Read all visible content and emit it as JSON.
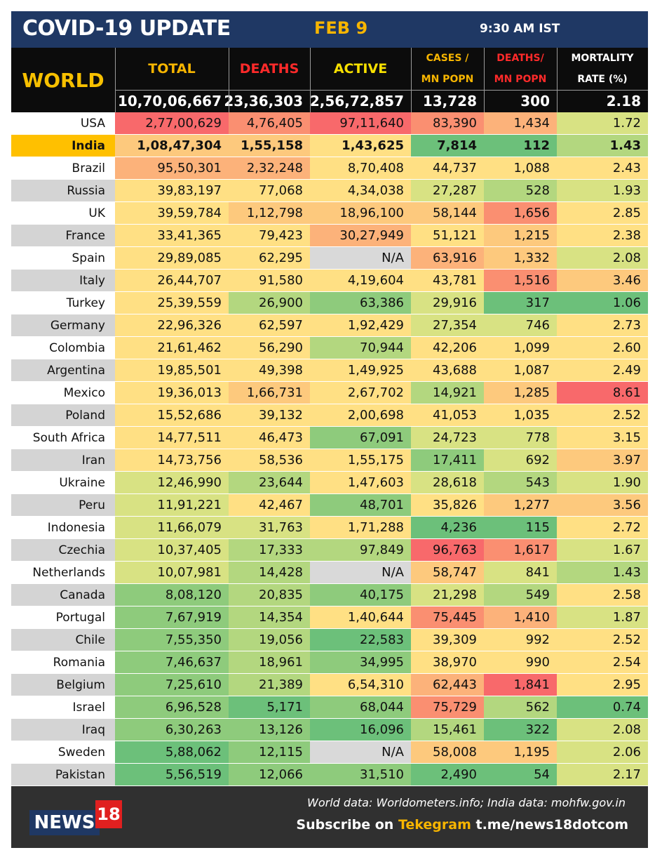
{
  "header": {
    "title": "COVID-19 UPDATE",
    "date": "FEB 9",
    "time": "9:30 AM IST"
  },
  "world": {
    "label": "WORLD",
    "columns": {
      "total": "TOTAL",
      "deaths": "DEATHS",
      "active": "ACTIVE",
      "cases_mn_1": "CASES /",
      "cases_mn_2": "MN POPN",
      "deaths_mn_1": "DEATHS/",
      "deaths_mn_2": "MN POPN",
      "mortality_1": "MORTALITY",
      "mortality_2": "RATE (%)"
    },
    "values": {
      "total": "10,70,06,667",
      "deaths": "23,36,303",
      "active": "2,56,72,857",
      "cases_mn": "13,728",
      "deaths_mn": "300",
      "mortality": "2.18"
    }
  },
  "colors": {
    "red": "#f8696b",
    "orange_red": "#fa8f71",
    "orange": "#fcb27a",
    "light_orange": "#fdc97d",
    "yellow": "#ffe084",
    "yellow_green": "#d8e283",
    "light_green": "#b3d77f",
    "green": "#8ecb7c",
    "dark_green": "#6cc07a",
    "na_grey": "#d9d9d9"
  },
  "countries": [
    {
      "name": "USA",
      "total": "2,77,00,629",
      "deaths": "4,76,405",
      "active": "97,11,640",
      "cases_mn": "83,390",
      "deaths_mn": "1,434",
      "mortality": "1.72",
      "c": [
        "red",
        "orange_red",
        "red",
        "orange_red",
        "orange",
        "yellow_green"
      ]
    },
    {
      "name": "India",
      "total": "1,08,47,304",
      "deaths": "1,55,158",
      "active": "1,43,625",
      "cases_mn": "7,814",
      "deaths_mn": "112",
      "mortality": "1.43",
      "c": [
        "light_orange",
        "light_orange",
        "yellow",
        "dark_green",
        "dark_green",
        "light_green"
      ]
    },
    {
      "name": "Brazil",
      "total": "95,50,301",
      "deaths": "2,32,248",
      "active": "8,70,408",
      "cases_mn": "44,737",
      "deaths_mn": "1,088",
      "mortality": "2.43",
      "c": [
        "orange",
        "orange",
        "yellow",
        "yellow",
        "yellow",
        "yellow"
      ]
    },
    {
      "name": "Russia",
      "total": "39,83,197",
      "deaths": "77,068",
      "active": "4,34,038",
      "cases_mn": "27,287",
      "deaths_mn": "528",
      "mortality": "1.93",
      "c": [
        "yellow",
        "yellow",
        "yellow",
        "yellow_green",
        "light_green",
        "yellow_green"
      ]
    },
    {
      "name": "UK",
      "total": "39,59,784",
      "deaths": "1,12,798",
      "active": "18,96,100",
      "cases_mn": "58,144",
      "deaths_mn": "1,656",
      "mortality": "2.85",
      "c": [
        "yellow",
        "light_orange",
        "light_orange",
        "light_orange",
        "orange_red",
        "yellow"
      ]
    },
    {
      "name": "France",
      "total": "33,41,365",
      "deaths": "79,423",
      "active": "30,27,949",
      "cases_mn": "51,121",
      "deaths_mn": "1,215",
      "mortality": "2.38",
      "c": [
        "yellow",
        "yellow",
        "orange",
        "yellow",
        "light_orange",
        "yellow"
      ]
    },
    {
      "name": "Spain",
      "total": "29,89,085",
      "deaths": "62,295",
      "active": "N/A",
      "cases_mn": "63,916",
      "deaths_mn": "1,332",
      "mortality": "2.08",
      "c": [
        "yellow",
        "yellow",
        "na_grey",
        "orange",
        "light_orange",
        "yellow_green"
      ]
    },
    {
      "name": "Italy",
      "total": "26,44,707",
      "deaths": "91,580",
      "active": "4,19,604",
      "cases_mn": "43,781",
      "deaths_mn": "1,516",
      "mortality": "3.46",
      "c": [
        "yellow",
        "yellow",
        "yellow",
        "yellow",
        "orange_red",
        "light_orange"
      ]
    },
    {
      "name": "Turkey",
      "total": "25,39,559",
      "deaths": "26,900",
      "active": "63,386",
      "cases_mn": "29,916",
      "deaths_mn": "317",
      "mortality": "1.06",
      "c": [
        "yellow",
        "light_green",
        "green",
        "yellow_green",
        "dark_green",
        "dark_green"
      ]
    },
    {
      "name": "Germany",
      "total": "22,96,326",
      "deaths": "62,597",
      "active": "1,92,429",
      "cases_mn": "27,354",
      "deaths_mn": "746",
      "mortality": "2.73",
      "c": [
        "yellow",
        "yellow",
        "yellow",
        "yellow_green",
        "yellow_green",
        "yellow"
      ]
    },
    {
      "name": "Colombia",
      "total": "21,61,462",
      "deaths": "56,290",
      "active": "70,944",
      "cases_mn": "42,206",
      "deaths_mn": "1,099",
      "mortality": "2.60",
      "c": [
        "yellow",
        "yellow",
        "light_green",
        "yellow",
        "yellow",
        "yellow"
      ]
    },
    {
      "name": "Argentina",
      "total": "19,85,501",
      "deaths": "49,398",
      "active": "1,49,925",
      "cases_mn": "43,688",
      "deaths_mn": "1,087",
      "mortality": "2.49",
      "c": [
        "yellow",
        "yellow",
        "yellow",
        "yellow",
        "yellow",
        "yellow"
      ]
    },
    {
      "name": "Mexico",
      "total": "19,36,013",
      "deaths": "1,66,731",
      "active": "2,67,702",
      "cases_mn": "14,921",
      "deaths_mn": "1,285",
      "mortality": "8.61",
      "c": [
        "yellow",
        "light_orange",
        "yellow",
        "light_green",
        "light_orange",
        "red"
      ]
    },
    {
      "name": "Poland",
      "total": "15,52,686",
      "deaths": "39,132",
      "active": "2,00,698",
      "cases_mn": "41,053",
      "deaths_mn": "1,035",
      "mortality": "2.52",
      "c": [
        "yellow",
        "yellow",
        "yellow",
        "yellow",
        "yellow",
        "yellow"
      ]
    },
    {
      "name": "South Africa",
      "total": "14,77,511",
      "deaths": "46,473",
      "active": "67,091",
      "cases_mn": "24,723",
      "deaths_mn": "778",
      "mortality": "3.15",
      "c": [
        "yellow",
        "yellow",
        "green",
        "yellow_green",
        "yellow_green",
        "yellow"
      ]
    },
    {
      "name": "Iran",
      "total": "14,73,756",
      "deaths": "58,536",
      "active": "1,55,175",
      "cases_mn": "17,411",
      "deaths_mn": "692",
      "mortality": "3.97",
      "c": [
        "yellow",
        "yellow",
        "yellow",
        "green",
        "yellow_green",
        "light_orange"
      ]
    },
    {
      "name": "Ukraine",
      "total": "12,46,990",
      "deaths": "23,644",
      "active": "1,47,603",
      "cases_mn": "28,618",
      "deaths_mn": "543",
      "mortality": "1.90",
      "c": [
        "yellow_green",
        "light_green",
        "yellow",
        "yellow_green",
        "light_green",
        "yellow_green"
      ]
    },
    {
      "name": "Peru",
      "total": "11,91,221",
      "deaths": "42,467",
      "active": "48,701",
      "cases_mn": "35,826",
      "deaths_mn": "1,277",
      "mortality": "3.56",
      "c": [
        "yellow_green",
        "yellow",
        "green",
        "yellow",
        "light_orange",
        "light_orange"
      ]
    },
    {
      "name": "Indonesia",
      "total": "11,66,079",
      "deaths": "31,763",
      "active": "1,71,288",
      "cases_mn": "4,236",
      "deaths_mn": "115",
      "mortality": "2.72",
      "c": [
        "yellow_green",
        "yellow_green",
        "yellow",
        "dark_green",
        "dark_green",
        "yellow"
      ]
    },
    {
      "name": "Czechia",
      "total": "10,37,405",
      "deaths": "17,333",
      "active": "97,849",
      "cases_mn": "96,763",
      "deaths_mn": "1,617",
      "mortality": "1.67",
      "c": [
        "yellow_green",
        "light_green",
        "light_green",
        "red",
        "orange_red",
        "yellow_green"
      ]
    },
    {
      "name": "Netherlands",
      "total": "10,07,981",
      "deaths": "14,428",
      "active": "N/A",
      "cases_mn": "58,747",
      "deaths_mn": "841",
      "mortality": "1.43",
      "c": [
        "yellow_green",
        "light_green",
        "na_grey",
        "light_orange",
        "yellow_green",
        "light_green"
      ]
    },
    {
      "name": "Canada",
      "total": "8,08,120",
      "deaths": "20,835",
      "active": "40,175",
      "cases_mn": "21,298",
      "deaths_mn": "549",
      "mortality": "2.58",
      "c": [
        "green",
        "light_green",
        "green",
        "yellow_green",
        "light_green",
        "yellow"
      ]
    },
    {
      "name": "Portugal",
      "total": "7,67,919",
      "deaths": "14,354",
      "active": "1,40,644",
      "cases_mn": "75,445",
      "deaths_mn": "1,410",
      "mortality": "1.87",
      "c": [
        "green",
        "light_green",
        "yellow",
        "orange_red",
        "orange",
        "yellow_green"
      ]
    },
    {
      "name": "Chile",
      "total": "7,55,350",
      "deaths": "19,056",
      "active": "22,583",
      "cases_mn": "39,309",
      "deaths_mn": "992",
      "mortality": "2.52",
      "c": [
        "green",
        "light_green",
        "dark_green",
        "yellow",
        "yellow",
        "yellow"
      ]
    },
    {
      "name": "Romania",
      "total": "7,46,637",
      "deaths": "18,961",
      "active": "34,995",
      "cases_mn": "38,970",
      "deaths_mn": "990",
      "mortality": "2.54",
      "c": [
        "green",
        "light_green",
        "green",
        "yellow",
        "yellow",
        "yellow"
      ]
    },
    {
      "name": "Belgium",
      "total": "7,25,610",
      "deaths": "21,389",
      "active": "6,54,310",
      "cases_mn": "62,443",
      "deaths_mn": "1,841",
      "mortality": "2.95",
      "c": [
        "green",
        "light_green",
        "yellow",
        "orange",
        "red",
        "yellow"
      ]
    },
    {
      "name": "Israel",
      "total": "6,96,528",
      "deaths": "5,171",
      "active": "68,044",
      "cases_mn": "75,729",
      "deaths_mn": "562",
      "mortality": "0.74",
      "c": [
        "green",
        "dark_green",
        "green",
        "orange_red",
        "light_green",
        "dark_green"
      ]
    },
    {
      "name": "Iraq",
      "total": "6,30,263",
      "deaths": "13,126",
      "active": "16,096",
      "cases_mn": "15,461",
      "deaths_mn": "322",
      "mortality": "2.08",
      "c": [
        "green",
        "green",
        "dark_green",
        "light_green",
        "dark_green",
        "yellow_green"
      ]
    },
    {
      "name": "Sweden",
      "total": "5,88,062",
      "deaths": "12,115",
      "active": "N/A",
      "cases_mn": "58,008",
      "deaths_mn": "1,195",
      "mortality": "2.06",
      "c": [
        "dark_green",
        "green",
        "na_grey",
        "light_orange",
        "light_orange",
        "yellow_green"
      ]
    },
    {
      "name": "Pakistan",
      "total": "5,56,519",
      "deaths": "12,066",
      "active": "31,510",
      "cases_mn": "2,490",
      "deaths_mn": "54",
      "mortality": "2.17",
      "c": [
        "dark_green",
        "green",
        "green",
        "dark_green",
        "dark_green",
        "yellow_green"
      ]
    }
  ],
  "footer": {
    "logo_text": "NEWS",
    "logo_number": "18",
    "source": "World data: Worldometers.info; India data: mohfw.gov.in",
    "subscribe_prefix": "Subscribe on ",
    "subscribe_channel": "Tekegram",
    "subscribe_link": " t.me/news18dotcom"
  }
}
